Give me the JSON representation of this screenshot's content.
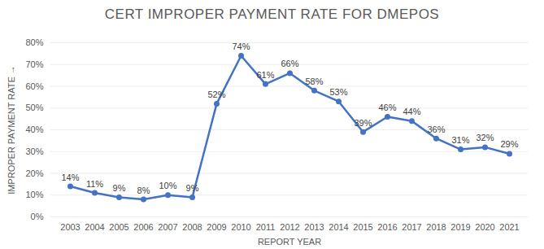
{
  "chart_data": {
    "type": "line",
    "title": "CERT IMPROPER PAYMENT RATE FOR DMEPOS",
    "x_label": "REPORT YEAR",
    "y_label": "IMPROPER PAYMENT RATE",
    "categories": [
      "2003",
      "2004",
      "2005",
      "2006",
      "2007",
      "2008",
      "2009",
      "2010",
      "2011",
      "2012",
      "2013",
      "2014",
      "2015",
      "2016",
      "2017",
      "2018",
      "2019",
      "2020",
      "2021"
    ],
    "values": [
      14,
      11,
      9,
      8,
      10,
      9,
      52,
      74,
      61,
      66,
      58,
      53,
      39,
      46,
      44,
      36,
      31,
      32,
      29
    ],
    "value_labels": [
      "14%",
      "11%",
      "9%",
      "8%",
      "10%",
      "9%",
      "52%",
      "74%",
      "61%",
      "66%",
      "58%",
      "53%",
      "39%",
      "46%",
      "44%",
      "36%",
      "31%",
      "32%",
      "29%"
    ],
    "color": "#4472c4",
    "marker": "circle",
    "data_labels": true,
    "grid": true,
    "ylim": [
      0,
      80
    ],
    "yticks": [
      {
        "value": 0,
        "label": "0%"
      },
      {
        "value": 10,
        "label": "10%"
      },
      {
        "value": 20,
        "label": "20%"
      },
      {
        "value": 30,
        "label": "30%"
      },
      {
        "value": 40,
        "label": "40%"
      },
      {
        "value": 50,
        "label": "50%"
      },
      {
        "value": 60,
        "label": "60%"
      },
      {
        "value": 70,
        "label": "70%"
      },
      {
        "value": 80,
        "label": "80%"
      }
    ]
  }
}
